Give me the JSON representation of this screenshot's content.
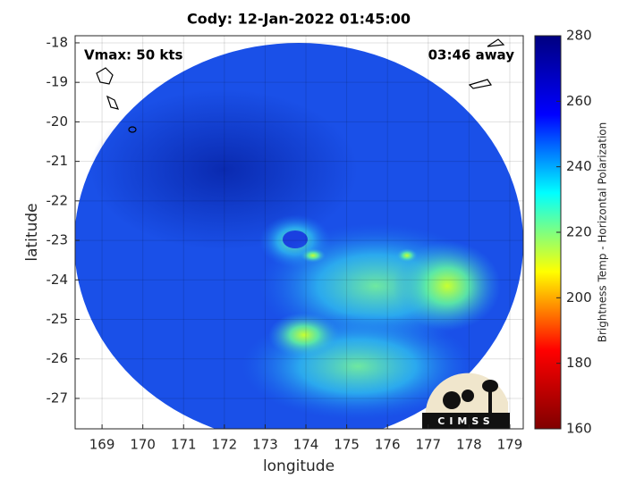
{
  "chart_data": {
    "type": "map",
    "title": "Cody: 12-Jan-2022 01:45:00",
    "annotations": [
      "Vmax: 50 kts",
      "03:46 away"
    ],
    "xlabel": "longitude",
    "ylabel": "latitude",
    "xlim": [
      168.34,
      179.33
    ],
    "xticks": [
      169,
      170,
      171,
      172,
      173,
      174,
      175,
      176,
      177,
      178,
      179
    ],
    "ylim": [
      -27.77,
      -17.82
    ],
    "yticks": [
      -18,
      -19,
      -20,
      -21,
      -22,
      -23,
      -24,
      -25,
      -26,
      -27
    ],
    "grid": true,
    "colorbar": {
      "label": "Brightness Temp - Horizontal Polarization",
      "colormap": "jet",
      "lim": [
        160,
        280
      ],
      "ticks": [
        160,
        180,
        200,
        220,
        240,
        260,
        280
      ]
    },
    "logo": "CIMSS"
  }
}
